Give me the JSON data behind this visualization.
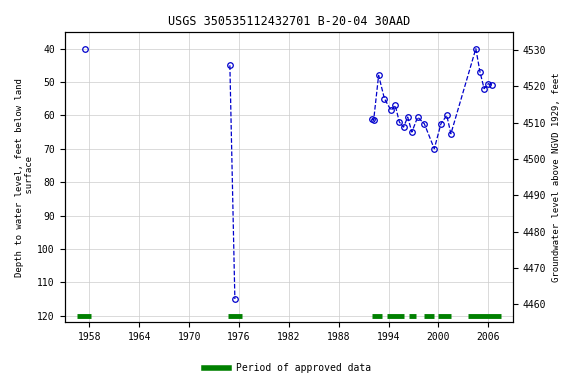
{
  "title": "USGS 350535112432701 B-20-04 30AAD",
  "ylabel_left": "Depth to water level, feet below land\n surface",
  "ylabel_right": "Groundwater level above NGVD 1929, feet",
  "ylim_left": [
    122,
    35
  ],
  "ylim_right": [
    4455,
    4535
  ],
  "xlim": [
    1955,
    2009
  ],
  "yticks_left": [
    40,
    50,
    60,
    70,
    80,
    90,
    100,
    110,
    120
  ],
  "yticks_right": [
    4460,
    4470,
    4480,
    4490,
    4500,
    4510,
    4520,
    4530
  ],
  "xticks": [
    1958,
    1964,
    1970,
    1976,
    1982,
    1988,
    1994,
    2000,
    2006
  ],
  "groups": [
    [
      {
        "year": 1957.5,
        "depth": 40.0
      }
    ],
    [
      {
        "year": 1974.9,
        "depth": 45.0
      },
      {
        "year": 1975.5,
        "depth": 115.0
      }
    ],
    [
      {
        "year": 1992.0,
        "depth": 61.0
      },
      {
        "year": 1992.2,
        "depth": 61.5
      },
      {
        "year": 1992.8,
        "depth": 48.0
      },
      {
        "year": 1993.5,
        "depth": 55.0
      },
      {
        "year": 1994.3,
        "depth": 58.5
      },
      {
        "year": 1994.8,
        "depth": 57.0
      },
      {
        "year": 1995.3,
        "depth": 62.0
      },
      {
        "year": 1995.8,
        "depth": 63.5
      },
      {
        "year": 1996.3,
        "depth": 60.5
      },
      {
        "year": 1996.8,
        "depth": 65.0
      },
      {
        "year": 1997.5,
        "depth": 60.5
      },
      {
        "year": 1998.3,
        "depth": 62.5
      },
      {
        "year": 1999.5,
        "depth": 70.0
      },
      {
        "year": 2000.3,
        "depth": 62.5
      },
      {
        "year": 2001.0,
        "depth": 60.0
      },
      {
        "year": 2001.5,
        "depth": 65.5
      },
      {
        "year": 2004.5,
        "depth": 40.0
      },
      {
        "year": 2005.0,
        "depth": 47.0
      },
      {
        "year": 2005.5,
        "depth": 52.0
      },
      {
        "year": 2006.0,
        "depth": 50.5
      },
      {
        "year": 2006.5,
        "depth": 51.0
      }
    ]
  ],
  "approved_periods": [
    [
      1956.5,
      1958.2
    ],
    [
      1974.7,
      1976.3
    ],
    [
      1992.0,
      1993.2
    ],
    [
      1993.8,
      1995.8
    ],
    [
      1996.5,
      1997.3
    ],
    [
      1998.3,
      1999.5
    ],
    [
      2000.0,
      2001.5
    ],
    [
      2003.5,
      2007.5
    ]
  ],
  "data_color": "#0000cc",
  "approved_color": "#008000",
  "bg_color": "#ffffff",
  "grid_color": "#cccccc"
}
